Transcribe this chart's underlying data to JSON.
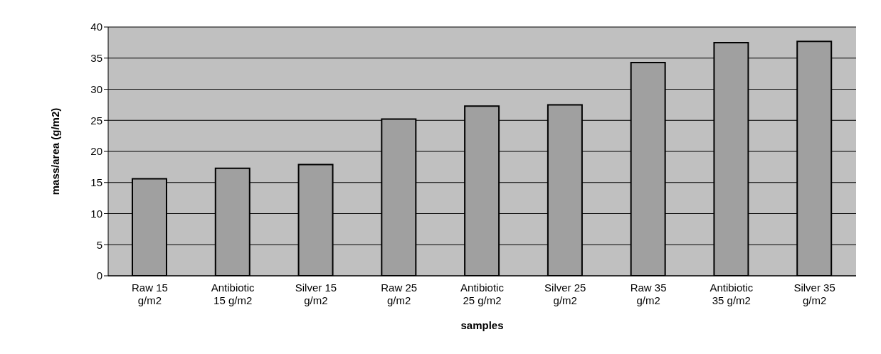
{
  "chart_data": {
    "type": "bar",
    "xlabel": "samples",
    "ylabel": "mass/area (g/m2)",
    "categories": [
      "Raw 15 g/m2",
      "Antibiotic 15 g/m2",
      "Silver 15 g/m2",
      "Raw 25 g/m2",
      "Antibiotic 25 g/m2",
      "Silver 25 g/m2",
      "Raw 35 g/m2",
      "Antibiotic 35 g/m2",
      "Silver 35 g/m2"
    ],
    "values": [
      15.6,
      17.3,
      17.9,
      25.2,
      27.3,
      27.5,
      34.3,
      37.5,
      37.7
    ],
    "color": "#a0a0a0",
    "ylim": [
      0,
      40
    ],
    "yticks": [
      0,
      5,
      10,
      15,
      20,
      25,
      30,
      35,
      40
    ],
    "grid": "y",
    "legend": false
  }
}
